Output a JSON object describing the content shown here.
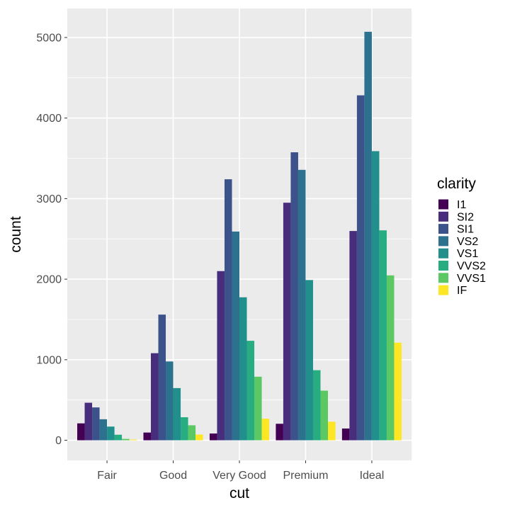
{
  "chart_data": {
    "type": "bar",
    "layout": "dodged",
    "xlabel": "cut",
    "ylabel": "count",
    "categories": [
      "Fair",
      "Good",
      "Very Good",
      "Premium",
      "Ideal"
    ],
    "yticks": [
      0,
      1000,
      2000,
      3000,
      4000,
      5000
    ],
    "ylim": [
      -250,
      5360
    ],
    "grid": true,
    "legend": {
      "title": "clarity",
      "position": "right"
    },
    "series": [
      {
        "name": "I1",
        "color": "#440154",
        "values": [
          210,
          96,
          84,
          205,
          146
        ]
      },
      {
        "name": "SI2",
        "color": "#472d7b",
        "values": [
          466,
          1081,
          2100,
          2949,
          2598
        ]
      },
      {
        "name": "SI1",
        "color": "#3b528b",
        "values": [
          408,
          1560,
          3240,
          3575,
          4282
        ]
      },
      {
        "name": "VS2",
        "color": "#2c728e",
        "values": [
          261,
          978,
          2591,
          3357,
          5071
        ]
      },
      {
        "name": "VS1",
        "color": "#21908d",
        "values": [
          170,
          648,
          1775,
          1989,
          3589
        ]
      },
      {
        "name": "VVS2",
        "color": "#27ad81",
        "values": [
          69,
          286,
          1235,
          870,
          2606
        ]
      },
      {
        "name": "VVS1",
        "color": "#5cc863",
        "values": [
          17,
          186,
          789,
          616,
          2047
        ]
      },
      {
        "name": "IF",
        "color": "#fde725",
        "values": [
          9,
          71,
          268,
          230,
          1212
        ]
      }
    ]
  }
}
